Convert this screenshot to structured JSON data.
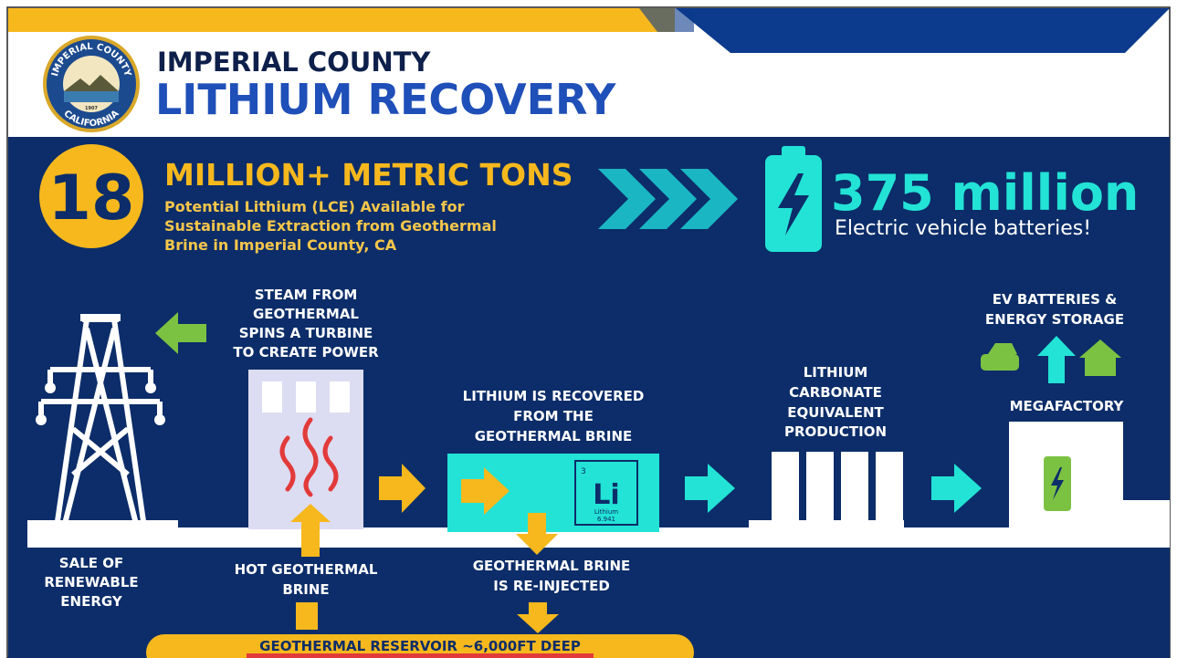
{
  "header": {
    "title_line1": "IMPERIAL COUNTY",
    "title_line2": "LITHIUM RECOVERY"
  },
  "logo": {
    "top": "IMPERIAL COUNTY",
    "bottom": "CALIFORNIA",
    "year": "1907"
  },
  "stat": {
    "number": "18",
    "heading": "MILLION+ METRIC TONS",
    "description": [
      "Potential Lithium (LCE) Available for",
      "Sustainable Extraction from Geothermal",
      "Brine in Imperial County, CA"
    ]
  },
  "ev": {
    "number": "375 million",
    "caption": "Electric vehicle batteries!"
  },
  "steps": {
    "steam": [
      "STEAM FROM",
      "GEOTHERMAL",
      "SPINS A TURBINE",
      "TO CREATE POWER"
    ],
    "recovered": [
      "LITHIUM IS RECOVERED",
      "FROM THE",
      "GEOTHERMAL BRINE"
    ],
    "carbonate": [
      "LITHIUM",
      "CARBONATE",
      "EQUIVALENT",
      "PRODUCTION"
    ],
    "ev_storage": [
      "EV BATTERIES &",
      "ENERGY STORAGE"
    ],
    "megafactory": "MEGAFACTORY",
    "sale": [
      "SALE OF",
      "RENEWABLE",
      "ENERGY"
    ],
    "hot_brine": [
      "HOT GEOTHERMAL",
      "BRINE"
    ],
    "reinjected": [
      "GEOTHERMAL BRINE",
      "IS RE-INJECTED"
    ],
    "reservoir": "GEOTHERMAL RESERVOIR ~6,000FT DEEP"
  },
  "element": {
    "number": "3",
    "symbol": "Li",
    "name": "Lithium",
    "mass": "6.941"
  }
}
